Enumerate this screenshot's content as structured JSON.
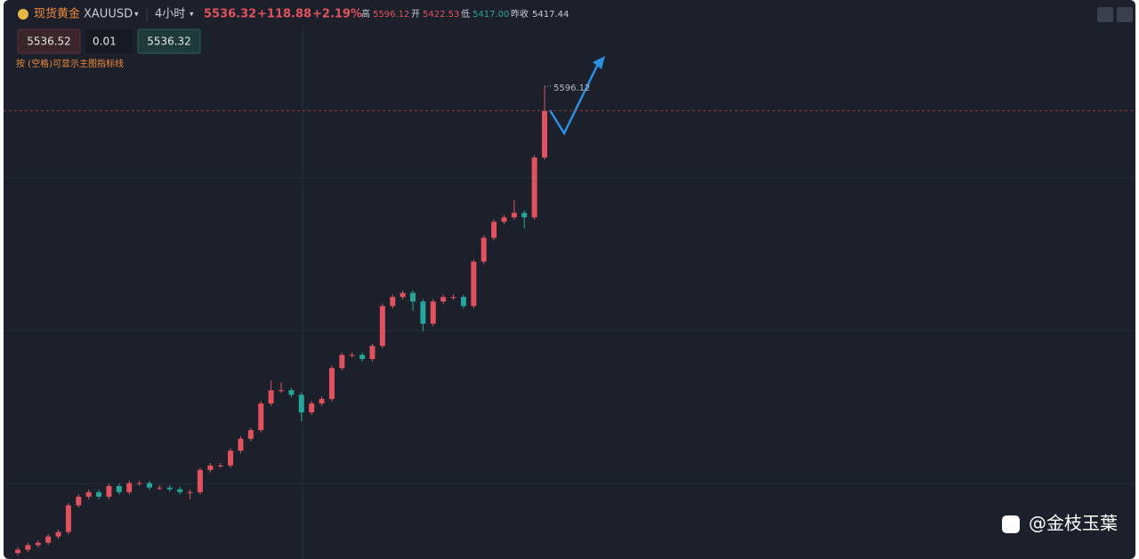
{
  "header": {
    "symbol_name": "现货黄金",
    "symbol": "XAUUSD",
    "interval": "4小时",
    "price": "5536.32",
    "change": "+118.88",
    "change_pct": "+2.19%",
    "high_label": "高",
    "high": "5596.12",
    "open_label": "开",
    "open": "5422.53",
    "low_label": "低",
    "low": "5417.00",
    "prev_label": "昨收",
    "prev": "5417.44"
  },
  "order": {
    "sell": "5536.52",
    "qty": "0.01",
    "buy": "5536.32"
  },
  "hint": "按 (空格)可显示主图指标线",
  "watermark": "@金枝玉葉",
  "chart_data": {
    "type": "candlestick",
    "open": [
      4460,
      4468,
      4479,
      4485,
      4500,
      4511,
      4576,
      4597,
      4608,
      4597,
      4623,
      4608,
      4630,
      4630,
      4619,
      4619,
      4615,
      4608,
      4608,
      4662,
      4673,
      4673,
      4709,
      4738,
      4759,
      4824,
      4856,
      4856,
      4845,
      4802,
      4824,
      4835,
      4910,
      4942,
      4942,
      4932,
      4964,
      5061,
      5083,
      5093,
      5072,
      5018,
      5072,
      5083,
      5083,
      5061,
      5169,
      5227,
      5266,
      5277,
      5288,
      5277,
      5422.53
    ],
    "high": [
      4474,
      4485,
      4491,
      4506,
      4517,
      4582,
      4603,
      4614,
      4614,
      4629,
      4629,
      4636,
      4636,
      4636,
      4625,
      4625,
      4621,
      4614,
      4668,
      4679,
      4679,
      4715,
      4744,
      4765,
      4830,
      4880,
      4875,
      4862,
      4851,
      4830,
      4841,
      4916,
      4948,
      4948,
      4948,
      4970,
      5067,
      5089,
      5099,
      5099,
      5078,
      5078,
      5089,
      5089,
      5089,
      5175,
      5233,
      5272,
      5283,
      5320,
      5294,
      5428,
      5596.12
    ],
    "low": [
      4454,
      4462,
      4473,
      4479,
      4494,
      4505,
      4570,
      4591,
      4591,
      4591,
      4602,
      4602,
      4624,
      4613,
      4613,
      4609,
      4602,
      4590,
      4602,
      4656,
      4667,
      4667,
      4703,
      4732,
      4753,
      4818,
      4850,
      4839,
      4780,
      4796,
      4818,
      4829,
      4904,
      4936,
      4926,
      4926,
      4958,
      5055,
      5077,
      5050,
      5000,
      5012,
      5066,
      5077,
      5055,
      5055,
      5163,
      5221,
      5260,
      5271,
      5250,
      5271,
      5417
    ],
    "close": [
      4468,
      4479,
      4485,
      4500,
      4511,
      4576,
      4597,
      4608,
      4597,
      4623,
      4608,
      4630,
      4630,
      4619,
      4619,
      4615,
      4608,
      4608,
      4662,
      4673,
      4673,
      4709,
      4738,
      4759,
      4824,
      4856,
      4856,
      4845,
      4802,
      4824,
      4835,
      4910,
      4942,
      4942,
      4932,
      4964,
      5061,
      5083,
      5093,
      5072,
      5018,
      5072,
      5083,
      5083,
      5061,
      5169,
      5227,
      5266,
      5277,
      5288,
      5277,
      5422.53,
      5536.32
    ],
    "up_color": "#e0525e",
    "down_color": "#26a69a"
  }
}
